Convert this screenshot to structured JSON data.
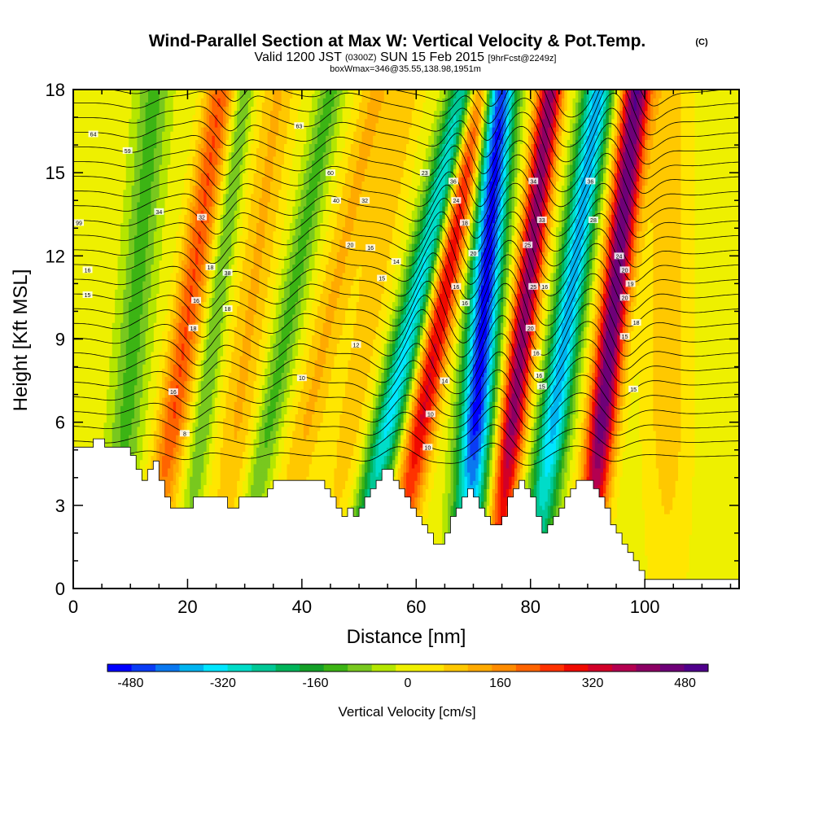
{
  "chart_data": {
    "type": "heatmap",
    "title": "Wind-Parallel Section at Max W: Vertical Velocity & Pot.Temp.",
    "title_mark": "(C)",
    "subtitle_parts": [
      "Valid 1200 JST",
      "(0300Z)",
      "SUN 15 Feb 2015",
      "[9hrFcst@2249z]"
    ],
    "subtitle2": "boxWmax=346@35.55,138.98,1951m",
    "xlabel": "Distance [nm]",
    "ylabel": "Height [Kft MSL]",
    "xlim": [
      0,
      116.5
    ],
    "ylim": [
      0,
      18
    ],
    "x_ticks": [
      "0",
      "20",
      "40",
      "60",
      "80",
      "100"
    ],
    "y_ticks": [
      "0",
      "3",
      "6",
      "9",
      "12",
      "15",
      "18"
    ],
    "colorbar_label": "Vertical Velocity [cm/s]",
    "colorbar_ticks": [
      "-480",
      "-320",
      "-160",
      "0",
      "160",
      "320",
      "480"
    ],
    "colorbar_range": [
      -520,
      520
    ],
    "colorbar_colors": [
      "#0000ff",
      "#0a3cf5",
      "#0a78f0",
      "#00b4f0",
      "#00e6ff",
      "#00dcc8",
      "#00c896",
      "#00b45a",
      "#14a028",
      "#3cb414",
      "#78c81e",
      "#b4e600",
      "#eef000",
      "#ffe600",
      "#ffc800",
      "#ffaa00",
      "#ff8c00",
      "#ff6400",
      "#ff3200",
      "#f00a00",
      "#d20028",
      "#b40050",
      "#8c0064",
      "#6e0078",
      "#50008c"
    ],
    "waves": [
      {
        "x_base": 10.5,
        "amplitude": -120,
        "width": 2.8,
        "tilt": 0.4
      },
      {
        "x_base": 19.5,
        "amplitude": 230,
        "width": 2.6,
        "tilt": 0.7
      },
      {
        "x_base": 24.5,
        "amplitude": -110,
        "width": 1.8,
        "tilt": 0.6
      },
      {
        "x_base": 30.5,
        "amplitude": 110,
        "width": 3.2,
        "tilt": 0.6
      },
      {
        "x_base": 37.0,
        "amplitude": -120,
        "width": 2.3,
        "tilt": 0.9
      },
      {
        "x_base": 44.0,
        "amplitude": 110,
        "width": 3.0,
        "tilt": 1.0
      },
      {
        "x_base": 51.0,
        "amplitude": 90,
        "width": 3.0,
        "tilt": 0.8
      },
      {
        "x_base": 58.5,
        "amplitude": -330,
        "width": 2.6,
        "tilt": 1.1
      },
      {
        "x_base": 63.5,
        "amplitude": 320,
        "width": 2.5,
        "tilt": 0.85
      },
      {
        "x_base": 71.5,
        "amplitude": -500,
        "width": 2.8,
        "tilt": 0.35
      },
      {
        "x_base": 78.5,
        "amplitude": 420,
        "width": 2.3,
        "tilt": 0.55
      },
      {
        "x_base": 86.0,
        "amplitude": -380,
        "width": 2.6,
        "tilt": 0.65
      },
      {
        "x_base": 94.0,
        "amplitude": 470,
        "width": 2.5,
        "tilt": 0.5
      },
      {
        "x_base": 104.0,
        "amplitude": 90,
        "width": 4.0,
        "tilt": 0.0
      }
    ],
    "terrain": [
      [
        0,
        5.1
      ],
      [
        3.5,
        5.1
      ],
      [
        3.5,
        5.4
      ],
      [
        5.5,
        5.4
      ],
      [
        5.5,
        5.1
      ],
      [
        10,
        5.1
      ],
      [
        10,
        4.8
      ],
      [
        11,
        4.8
      ],
      [
        11,
        4.3
      ],
      [
        12,
        4.3
      ],
      [
        12,
        3.9
      ],
      [
        13,
        3.9
      ],
      [
        13,
        4.3
      ],
      [
        14,
        4.3
      ],
      [
        14,
        4.6
      ],
      [
        15,
        4.6
      ],
      [
        15,
        3.9
      ],
      [
        16,
        3.9
      ],
      [
        16,
        3.3
      ],
      [
        17,
        3.3
      ],
      [
        17,
        2.9
      ],
      [
        19,
        2.9
      ],
      [
        19,
        2.9
      ],
      [
        21,
        2.9
      ],
      [
        21,
        3.3
      ],
      [
        27,
        3.3
      ],
      [
        27,
        2.9
      ],
      [
        29,
        2.9
      ],
      [
        29,
        3.3
      ],
      [
        34,
        3.3
      ],
      [
        34,
        3.6
      ],
      [
        35,
        3.6
      ],
      [
        35,
        3.9
      ],
      [
        40,
        3.9
      ],
      [
        40,
        3.9
      ],
      [
        44,
        3.9
      ],
      [
        44,
        3.6
      ],
      [
        45,
        3.6
      ],
      [
        45,
        3.3
      ],
      [
        46,
        3.3
      ],
      [
        46,
        2.9
      ],
      [
        47,
        2.9
      ],
      [
        47,
        2.6
      ],
      [
        48,
        2.6
      ],
      [
        48,
        2.9
      ],
      [
        49,
        2.9
      ],
      [
        49,
        2.6
      ],
      [
        50,
        2.6
      ],
      [
        50,
        2.9
      ],
      [
        51,
        2.9
      ],
      [
        51,
        3.3
      ],
      [
        52,
        3.3
      ],
      [
        52,
        3.6
      ],
      [
        53,
        3.6
      ],
      [
        53,
        3.9
      ],
      [
        54,
        3.9
      ],
      [
        54,
        4.3
      ],
      [
        56,
        4.3
      ],
      [
        56,
        3.9
      ],
      [
        57,
        3.9
      ],
      [
        57,
        3.6
      ],
      [
        58,
        3.6
      ],
      [
        58,
        3.3
      ],
      [
        59,
        3.3
      ],
      [
        59,
        2.9
      ],
      [
        60,
        2.9
      ],
      [
        60,
        2.6
      ],
      [
        61,
        2.6
      ],
      [
        61,
        2.3
      ],
      [
        62,
        2.3
      ],
      [
        62,
        2.0
      ],
      [
        63,
        2.0
      ],
      [
        63,
        1.6
      ],
      [
        65,
        1.6
      ],
      [
        65,
        2.0
      ],
      [
        66,
        2.0
      ],
      [
        66,
        2.6
      ],
      [
        67,
        2.6
      ],
      [
        67,
        2.9
      ],
      [
        68,
        2.9
      ],
      [
        68,
        3.3
      ],
      [
        69,
        3.3
      ],
      [
        69,
        3.6
      ],
      [
        70,
        3.6
      ],
      [
        70,
        3.3
      ],
      [
        71,
        3.3
      ],
      [
        71,
        2.9
      ],
      [
        72,
        2.9
      ],
      [
        72,
        2.6
      ],
      [
        73,
        2.6
      ],
      [
        73,
        2.3
      ],
      [
        75,
        2.3
      ],
      [
        75,
        2.6
      ],
      [
        76,
        2.6
      ],
      [
        76,
        3.3
      ],
      [
        77,
        3.3
      ],
      [
        77,
        3.6
      ],
      [
        78,
        3.6
      ],
      [
        78,
        3.9
      ],
      [
        79,
        3.9
      ],
      [
        79,
        3.6
      ],
      [
        80,
        3.6
      ],
      [
        80,
        3.3
      ],
      [
        81,
        3.3
      ],
      [
        81,
        2.6
      ],
      [
        82,
        2.6
      ],
      [
        82,
        2.0
      ],
      [
        83,
        2.0
      ],
      [
        83,
        2.3
      ],
      [
        84,
        2.3
      ],
      [
        84,
        2.6
      ],
      [
        85,
        2.6
      ],
      [
        85,
        2.9
      ],
      [
        86,
        2.9
      ],
      [
        86,
        3.3
      ],
      [
        87,
        3.3
      ],
      [
        87,
        3.6
      ],
      [
        88,
        3.6
      ],
      [
        88,
        3.9
      ],
      [
        91,
        3.9
      ],
      [
        91,
        3.6
      ],
      [
        92,
        3.6
      ],
      [
        92,
        3.3
      ],
      [
        93,
        3.3
      ],
      [
        93,
        2.9
      ],
      [
        94,
        2.9
      ],
      [
        94,
        2.3
      ],
      [
        95,
        2.3
      ],
      [
        95,
        2.0
      ],
      [
        96,
        2.0
      ],
      [
        96,
        1.6
      ],
      [
        97,
        1.6
      ],
      [
        97,
        1.3
      ],
      [
        98,
        1.3
      ],
      [
        98,
        1.0
      ],
      [
        99,
        1.0
      ],
      [
        99,
        0.65
      ],
      [
        100,
        0.65
      ],
      [
        100,
        0.33
      ],
      [
        101,
        0.33
      ],
      [
        101,
        0.33
      ],
      [
        116.5,
        0.33
      ]
    ],
    "contour_labels": [
      {
        "x": 3.5,
        "y": 16.4,
        "text": "64"
      },
      {
        "x": 9.5,
        "y": 15.8,
        "text": "59"
      },
      {
        "x": 15.0,
        "y": 13.6,
        "text": "34"
      },
      {
        "x": 22.5,
        "y": 13.4,
        "text": "32"
      },
      {
        "x": 24.0,
        "y": 11.6,
        "text": "18"
      },
      {
        "x": 27.0,
        "y": 11.4,
        "text": "38"
      },
      {
        "x": 21.5,
        "y": 10.4,
        "text": "16"
      },
      {
        "x": 27.0,
        "y": 10.1,
        "text": "18"
      },
      {
        "x": 21.0,
        "y": 9.4,
        "text": "18"
      },
      {
        "x": 17.5,
        "y": 7.1,
        "text": "16"
      },
      {
        "x": 19.5,
        "y": 5.6,
        "text": "8"
      },
      {
        "x": 1.0,
        "y": 13.2,
        "text": "99"
      },
      {
        "x": 2.5,
        "y": 11.5,
        "text": "16"
      },
      {
        "x": 2.5,
        "y": 10.6,
        "text": "15"
      },
      {
        "x": 39.5,
        "y": 16.7,
        "text": "63"
      },
      {
        "x": 45.0,
        "y": 15.0,
        "text": "60"
      },
      {
        "x": 46.0,
        "y": 14.0,
        "text": "40"
      },
      {
        "x": 51.0,
        "y": 14.0,
        "text": "32"
      },
      {
        "x": 48.5,
        "y": 12.4,
        "text": "20"
      },
      {
        "x": 52.0,
        "y": 12.3,
        "text": "16"
      },
      {
        "x": 56.5,
        "y": 11.8,
        "text": "14"
      },
      {
        "x": 54.0,
        "y": 11.2,
        "text": "15"
      },
      {
        "x": 49.5,
        "y": 8.8,
        "text": "12"
      },
      {
        "x": 40.0,
        "y": 7.6,
        "text": "10"
      },
      {
        "x": 61.5,
        "y": 15.0,
        "text": "23"
      },
      {
        "x": 66.5,
        "y": 14.7,
        "text": "36"
      },
      {
        "x": 67.0,
        "y": 14.0,
        "text": "24"
      },
      {
        "x": 68.5,
        "y": 13.2,
        "text": "18"
      },
      {
        "x": 70.0,
        "y": 12.1,
        "text": "20"
      },
      {
        "x": 67.0,
        "y": 10.9,
        "text": "16"
      },
      {
        "x": 68.5,
        "y": 10.3,
        "text": "16"
      },
      {
        "x": 65.0,
        "y": 7.5,
        "text": "14"
      },
      {
        "x": 62.5,
        "y": 6.3,
        "text": "10"
      },
      {
        "x": 62.0,
        "y": 5.1,
        "text": "10"
      },
      {
        "x": 80.5,
        "y": 14.7,
        "text": "34"
      },
      {
        "x": 82.0,
        "y": 13.3,
        "text": "33"
      },
      {
        "x": 79.5,
        "y": 12.4,
        "text": "25"
      },
      {
        "x": 80.5,
        "y": 10.9,
        "text": "25"
      },
      {
        "x": 82.5,
        "y": 10.9,
        "text": "16"
      },
      {
        "x": 80.0,
        "y": 9.4,
        "text": "20"
      },
      {
        "x": 81.0,
        "y": 8.5,
        "text": "16"
      },
      {
        "x": 81.5,
        "y": 7.7,
        "text": "16"
      },
      {
        "x": 82.0,
        "y": 7.3,
        "text": "15"
      },
      {
        "x": 90.5,
        "y": 14.7,
        "text": "36"
      },
      {
        "x": 91.0,
        "y": 13.3,
        "text": "28"
      },
      {
        "x": 95.5,
        "y": 12.0,
        "text": "24"
      },
      {
        "x": 96.5,
        "y": 11.5,
        "text": "20"
      },
      {
        "x": 97.5,
        "y": 11.0,
        "text": "19"
      },
      {
        "x": 96.5,
        "y": 10.5,
        "text": "20"
      },
      {
        "x": 98.5,
        "y": 9.6,
        "text": "18"
      },
      {
        "x": 96.5,
        "y": 9.1,
        "text": "15"
      },
      {
        "x": 98.0,
        "y": 7.2,
        "text": "15"
      }
    ]
  }
}
